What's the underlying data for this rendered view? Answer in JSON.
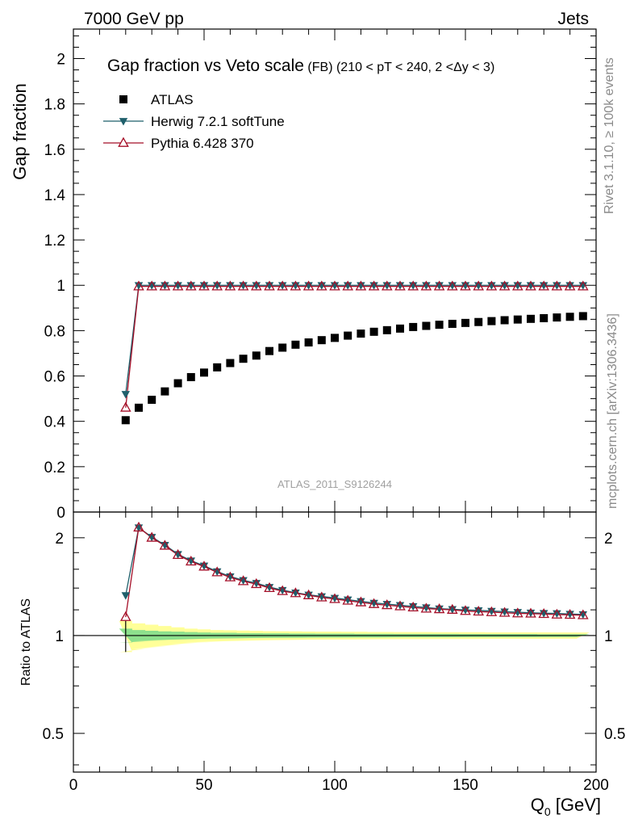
{
  "header": {
    "left": "7000 GeV pp",
    "right": "Jets"
  },
  "side_text": {
    "rivet": "Rivet 3.1.10, ≥ 100k events",
    "mcplots": "mcplots.cern.ch [arXiv:1306.3436]"
  },
  "chart_data": [
    {
      "type": "scatter",
      "title": "Gap fraction vs Veto scale",
      "subtitle": "(FB) (210 < pT < 240, 2 <Δy < 3)",
      "ylabel": "Gap fraction",
      "xlabel": "Q",
      "xlabel_sub": "0",
      "xlabel_unit": " [GeV]",
      "xlim": [
        0,
        200
      ],
      "ylim": [
        0,
        2.13
      ],
      "yticks": [
        0,
        0.2,
        0.4,
        0.6,
        0.8,
        1,
        1.2,
        1.4,
        1.6,
        1.8,
        2
      ],
      "ytick_labels": [
        "0",
        "0.2",
        "0.4",
        "0.6",
        "0.8",
        "1",
        "1.2",
        "1.4",
        "1.6",
        "1.8",
        "2"
      ],
      "watermark": "ATLAS_2011_S9126244",
      "legend": [
        "ATLAS",
        "Herwig 7.2.1 softTune",
        "Pythia 6.428 370"
      ],
      "x": [
        20,
        25,
        30,
        35,
        40,
        45,
        50,
        55,
        60,
        65,
        70,
        75,
        80,
        85,
        90,
        95,
        100,
        105,
        110,
        115,
        120,
        125,
        130,
        135,
        140,
        145,
        150,
        155,
        160,
        165,
        170,
        175,
        180,
        185,
        190,
        195
      ],
      "series": [
        {
          "name": "ATLAS",
          "color": "#000000",
          "values": [
            0.405,
            0.46,
            0.495,
            0.532,
            0.568,
            0.595,
            0.615,
            0.638,
            0.657,
            0.676,
            0.69,
            0.71,
            0.725,
            0.738,
            0.748,
            0.758,
            0.768,
            0.778,
            0.787,
            0.795,
            0.802,
            0.809,
            0.816,
            0.821,
            0.826,
            0.83,
            0.834,
            0.838,
            0.842,
            0.846,
            0.849,
            0.852,
            0.855,
            0.858,
            0.861,
            0.864
          ]
        },
        {
          "name": "Herwig 7.2.1 softTune",
          "color": "#1f5f6b",
          "values": [
            0.52,
            1,
            1,
            1,
            1,
            1,
            1,
            1,
            1,
            1,
            1,
            1,
            1,
            1,
            1,
            1,
            1,
            1,
            1,
            1,
            1,
            1,
            1,
            1,
            1,
            1,
            1,
            1,
            1,
            1,
            1,
            1,
            1,
            1,
            1,
            1
          ]
        },
        {
          "name": "Pythia 6.428 370",
          "color": "#a50f28",
          "values": [
            0.46,
            0.995,
            0.995,
            0.995,
            0.995,
            0.995,
            0.995,
            0.995,
            0.995,
            0.995,
            0.995,
            0.995,
            0.995,
            0.995,
            0.995,
            0.995,
            0.995,
            0.995,
            0.995,
            0.995,
            0.995,
            0.995,
            0.995,
            0.995,
            0.995,
            0.995,
            0.995,
            0.995,
            0.995,
            0.995,
            0.995,
            0.995,
            0.995,
            0.995,
            0.995,
            0.995
          ]
        }
      ]
    },
    {
      "type": "line",
      "ylabel": "Ratio to ATLAS",
      "yscale": "log",
      "xlim": [
        0,
        200
      ],
      "ylim": [
        0.38,
        2.4
      ],
      "xticks": [
        0,
        50,
        100,
        150,
        200
      ],
      "xtick_labels": [
        "0",
        "50",
        "100",
        "150",
        "200"
      ],
      "yticks": [
        0.5,
        1,
        2
      ],
      "ytick_labels": [
        "0.5",
        "1",
        "2"
      ],
      "x": [
        20,
        25,
        30,
        35,
        40,
        45,
        50,
        55,
        60,
        65,
        70,
        75,
        80,
        85,
        90,
        95,
        100,
        105,
        110,
        115,
        120,
        125,
        130,
        135,
        140,
        145,
        150,
        155,
        160,
        165,
        170,
        175,
        180,
        185,
        190,
        195
      ],
      "band_inner": [
        0.05,
        0.04,
        0.035,
        0.03,
        0.028,
        0.025,
        0.022,
        0.02,
        0.02,
        0.018,
        0.017,
        0.016,
        0.016,
        0.015,
        0.015,
        0.014,
        0.014,
        0.014,
        0.013,
        0.013,
        0.013,
        0.012,
        0.012,
        0.012,
        0.012,
        0.012,
        0.011,
        0.011,
        0.011,
        0.011,
        0.011,
        0.011,
        0.01,
        0.01,
        0.01,
        0.01
      ],
      "band_outer": [
        0.11,
        0.09,
        0.08,
        0.07,
        0.06,
        0.05,
        0.045,
        0.04,
        0.038,
        0.036,
        0.034,
        0.032,
        0.031,
        0.03,
        0.029,
        0.028,
        0.028,
        0.027,
        0.027,
        0.026,
        0.026,
        0.025,
        0.025,
        0.025,
        0.024,
        0.024,
        0.024,
        0.024,
        0.023,
        0.023,
        0.023,
        0.023,
        0.023,
        0.022,
        0.022,
        0.022
      ],
      "series": [
        {
          "name": "Herwig 7.2.1 softTune",
          "color": "#1f5f6b",
          "values": [
            1.33,
            2.15,
            2.01,
            1.9,
            1.78,
            1.7,
            1.64,
            1.575,
            1.52,
            1.48,
            1.45,
            1.41,
            1.38,
            1.355,
            1.335,
            1.32,
            1.305,
            1.29,
            1.275,
            1.26,
            1.25,
            1.24,
            1.23,
            1.22,
            1.21,
            1.205,
            1.2,
            1.195,
            1.19,
            1.185,
            1.18,
            1.175,
            1.172,
            1.17,
            1.165,
            1.162
          ]
        },
        {
          "name": "Pythia 6.428 370",
          "color": "#a50f28",
          "values": [
            1.14,
            2.15,
            2.0,
            1.89,
            1.77,
            1.69,
            1.63,
            1.565,
            1.51,
            1.47,
            1.44,
            1.4,
            1.37,
            1.35,
            1.33,
            1.31,
            1.295,
            1.28,
            1.265,
            1.25,
            1.24,
            1.23,
            1.22,
            1.21,
            1.205,
            1.2,
            1.19,
            1.185,
            1.18,
            1.175,
            1.17,
            1.168,
            1.165,
            1.16,
            1.158,
            1.155
          ]
        }
      ]
    }
  ]
}
